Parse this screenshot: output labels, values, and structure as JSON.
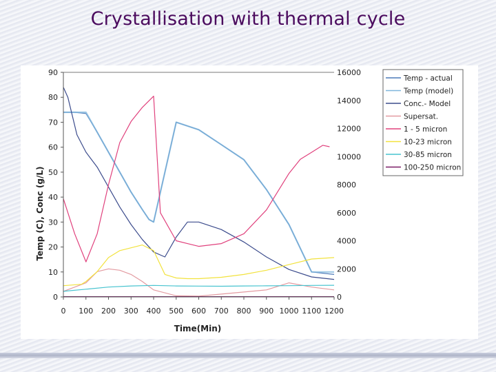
{
  "slide": {
    "title": "Crystallisation with thermal cycle"
  },
  "chart_data": {
    "type": "line",
    "title": "",
    "xlabel": "Time(Min)",
    "ylabel": "Temp (C), Conc (g/L)",
    "y2label": "",
    "xlim": [
      0,
      1200
    ],
    "ylim": [
      0,
      90
    ],
    "y2lim": [
      0,
      16000
    ],
    "x_ticks": [
      "0",
      "100",
      "200",
      "300",
      "400",
      "500",
      "600",
      "700",
      "800",
      "900",
      "1000",
      "1100",
      "1200"
    ],
    "y_ticks": [
      "0",
      "10",
      "20",
      "30",
      "40",
      "50",
      "60",
      "70",
      "80",
      "90"
    ],
    "y2_ticks": [
      "0",
      "2000",
      "4000",
      "6000",
      "8000",
      "10000",
      "12000",
      "14000",
      "16000"
    ],
    "legend_position": "right",
    "grid": false,
    "series": [
      {
        "name": "Temp - actual",
        "axis": "left",
        "color": "#4a78b8",
        "x": [
          0,
          50,
          100,
          150,
          200,
          250,
          300,
          350,
          380,
          400,
          500,
          600,
          700,
          800,
          900,
          1000,
          1100,
          1200
        ],
        "y": [
          74,
          74,
          73.5,
          66,
          58,
          50,
          42,
          35,
          31,
          30,
          70,
          67,
          61,
          55,
          43,
          29,
          10,
          9
        ]
      },
      {
        "name": "Temp (model)",
        "axis": "left",
        "color": "#7fb6dc",
        "x": [
          0,
          50,
          100,
          150,
          200,
          250,
          300,
          350,
          380,
          400,
          500,
          600,
          700,
          800,
          900,
          1000,
          1100,
          1200
        ],
        "y": [
          74,
          74,
          74,
          66,
          58,
          50,
          42,
          35,
          31,
          30,
          70,
          67,
          61,
          55,
          43,
          29,
          10,
          10
        ]
      },
      {
        "name": "Conc.- Model",
        "axis": "left",
        "color": "#3b4b8c",
        "x": [
          0,
          20,
          60,
          100,
          150,
          200,
          250,
          300,
          350,
          400,
          450,
          500,
          550,
          600,
          700,
          800,
          900,
          1000,
          1100,
          1200
        ],
        "y": [
          84,
          80,
          65,
          58,
          52,
          44,
          36,
          29,
          23,
          18,
          16,
          24,
          30,
          30,
          27,
          22,
          16,
          11,
          8,
          7
        ]
      },
      {
        "name": "Supersat.",
        "axis": "right",
        "color": "#e39aa0",
        "x": [
          0,
          100,
          150,
          200,
          250,
          300,
          350,
          400,
          500,
          600,
          700,
          800,
          900,
          1000,
          1100,
          1200
        ],
        "y": [
          400,
          1000,
          1800,
          2000,
          1900,
          1600,
          1100,
          500,
          80,
          60,
          200,
          350,
          500,
          1000,
          700,
          500
        ]
      },
      {
        "name": "1 - 5 micron",
        "axis": "right",
        "color": "#e0407c",
        "x": [
          0,
          50,
          100,
          150,
          200,
          250,
          300,
          350,
          400,
          430,
          500,
          550,
          600,
          700,
          800,
          900,
          1000,
          1050,
          1100,
          1150,
          1180
        ],
        "y": [
          7000,
          4500,
          2500,
          4500,
          8000,
          11000,
          12500,
          13500,
          14300,
          6000,
          4000,
          3800,
          3600,
          3800,
          4500,
          6200,
          8800,
          9800,
          10300,
          10800,
          10700
        ]
      },
      {
        "name": "10-23 micron",
        "axis": "right",
        "color": "#f2e23c",
        "x": [
          0,
          80,
          100,
          150,
          200,
          250,
          300,
          350,
          400,
          450,
          500,
          550,
          600,
          700,
          800,
          900,
          1000,
          1100,
          1200
        ],
        "y": [
          800,
          900,
          1100,
          1800,
          2800,
          3300,
          3500,
          3700,
          3300,
          1600,
          1350,
          1300,
          1300,
          1400,
          1600,
          1900,
          2300,
          2700,
          2800
        ]
      },
      {
        "name": "30-85 micron",
        "axis": "right",
        "color": "#46c3cf",
        "x": [
          0,
          100,
          200,
          300,
          400,
          500,
          600,
          700,
          800,
          900,
          1000,
          1100,
          1200
        ],
        "y": [
          400,
          550,
          700,
          780,
          820,
          780,
          770,
          760,
          780,
          790,
          800,
          820,
          830
        ]
      },
      {
        "name": "100-250 micron",
        "axis": "right",
        "color": "#7a1a66",
        "x": [
          0,
          200,
          400,
          600,
          800,
          1000,
          1200
        ],
        "y": [
          20,
          20,
          20,
          20,
          20,
          20,
          20
        ]
      }
    ]
  }
}
